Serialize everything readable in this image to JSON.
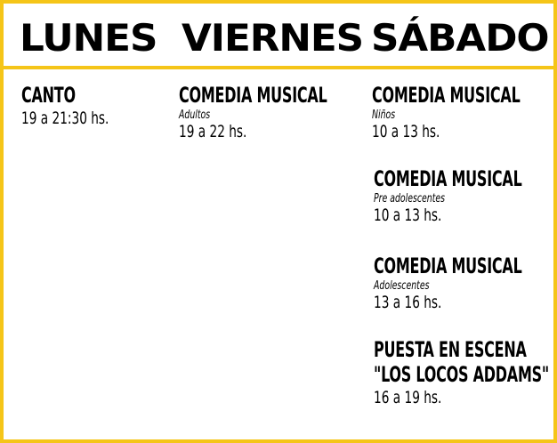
{
  "header": {
    "days": [
      "LUNES",
      "VIERNES",
      "SÁBADO"
    ]
  },
  "lunes": {
    "classes": [
      {
        "title": "CANTO",
        "time": "19 a 21:30 hs."
      }
    ]
  },
  "viernes": {
    "classes": [
      {
        "title": "COMEDIA MUSICAL",
        "subtitle": "Adultos",
        "time": "19 a 22 hs."
      }
    ]
  },
  "sabado": {
    "classes": [
      {
        "title": "COMEDIA MUSICAL",
        "subtitle": "Niños",
        "time": "10 a 13 hs."
      },
      {
        "title": "COMEDIA MUSICAL",
        "subtitle": "Pre adolescentes",
        "time": "10 a 13 hs."
      },
      {
        "title": "COMEDIA MUSICAL",
        "subtitle": "Adolescentes",
        "time": "13 a 16 hs."
      },
      {
        "title": "PUESTA EN ESCENA",
        "subtitle": "\"LOS LOCOS ADDAMS\"",
        "time": "16 a 19 hs."
      }
    ]
  },
  "colors": {
    "border": "#f5c518",
    "text": "#000000",
    "background": "#ffffff"
  }
}
